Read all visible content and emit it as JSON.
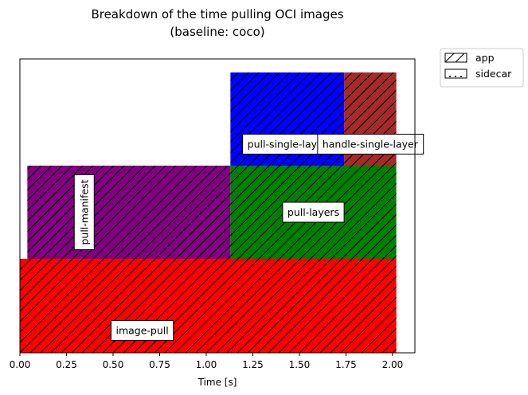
{
  "chart_data": {
    "type": "bar",
    "orientation": "horizontal-gantt",
    "title": "Breakdown of the time pulling OCI images",
    "subtitle": "(baseline: coco)",
    "xlabel": "Time [s]",
    "ylabel": "",
    "xlim": [
      0.0,
      2.12
    ],
    "xticks": [
      "0.00",
      "0.25",
      "0.50",
      "0.75",
      "1.00",
      "1.25",
      "1.50",
      "1.75",
      "2.00"
    ],
    "xtick_values": [
      0.0,
      0.25,
      0.5,
      0.75,
      1.0,
      1.25,
      1.5,
      1.75,
      2.0
    ],
    "grid": false,
    "legend_position": "outside-top-right",
    "legend": [
      {
        "name": "app",
        "pattern": "hatch"
      },
      {
        "name": "sidecar",
        "pattern": "dots"
      }
    ],
    "spans": [
      {
        "name": "image-pull",
        "level": 0,
        "start": 0.0,
        "end": 2.02,
        "color": "#ff0000",
        "label_vertical": false
      },
      {
        "name": "pull-manifest",
        "level": 1,
        "start": 0.04,
        "end": 1.13,
        "color": "#800080",
        "label_vertical": true
      },
      {
        "name": "pull-layers",
        "level": 1,
        "start": 1.13,
        "end": 2.02,
        "color": "#008000",
        "label_vertical": false
      },
      {
        "name": "pull-single-layer",
        "level": 2,
        "start": 1.13,
        "end": 1.74,
        "color": "#0000ff",
        "label_vertical": false
      },
      {
        "name": "handle-single-layer",
        "level": 2,
        "start": 1.74,
        "end": 2.02,
        "color": "#a52a2a",
        "label_vertical": false
      }
    ]
  }
}
